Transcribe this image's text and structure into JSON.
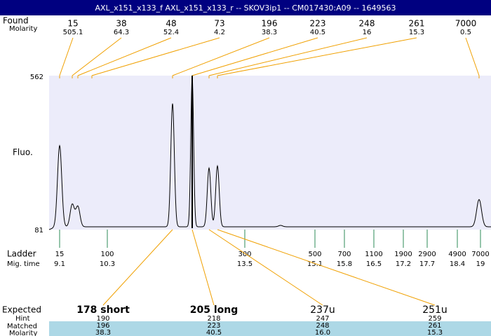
{
  "title": "AXL_x151_x133_f  AXL_x151_x133_r -- SKOV3ip1 -- CM017430:A09 -- 1649563",
  "peaks": {
    "found_label": "Found",
    "molarity_label": "Molarity",
    "sizes": [
      "15",
      "38",
      "48",
      "73",
      "196",
      "223",
      "248",
      "261",
      "7000"
    ],
    "molarities": [
      "505.1",
      "64.3",
      "52.4",
      "4.2",
      "38.3",
      "40.5",
      "16",
      "15.3",
      "0.5"
    ]
  },
  "y_axis": {
    "label": "Fluo.",
    "top": "562",
    "bottom": "81"
  },
  "ladder": {
    "label": "Ladder",
    "time_label": "Mig. time",
    "sizes": [
      "15",
      "100",
      "300",
      "500",
      "700",
      "1100",
      "1900",
      "2900",
      "4900",
      "7000"
    ],
    "times": [
      "9.1",
      "10.3",
      "13.5",
      "15.1",
      "15.8",
      "16.5",
      "17.2",
      "17.7",
      "18.4",
      "19"
    ]
  },
  "expected": {
    "label": "Expected",
    "hint_label": "Hint",
    "matched_label": "Matched",
    "molarity_label": "Molarity",
    "names": [
      "178 short",
      "205 long",
      "237u",
      "251u"
    ],
    "hint": [
      "190",
      "218",
      "247",
      "259"
    ],
    "matched": [
      "196",
      "223",
      "248",
      "261"
    ],
    "molarity": [
      "38.3",
      "40.5",
      "16.0",
      "15.3"
    ]
  }
}
